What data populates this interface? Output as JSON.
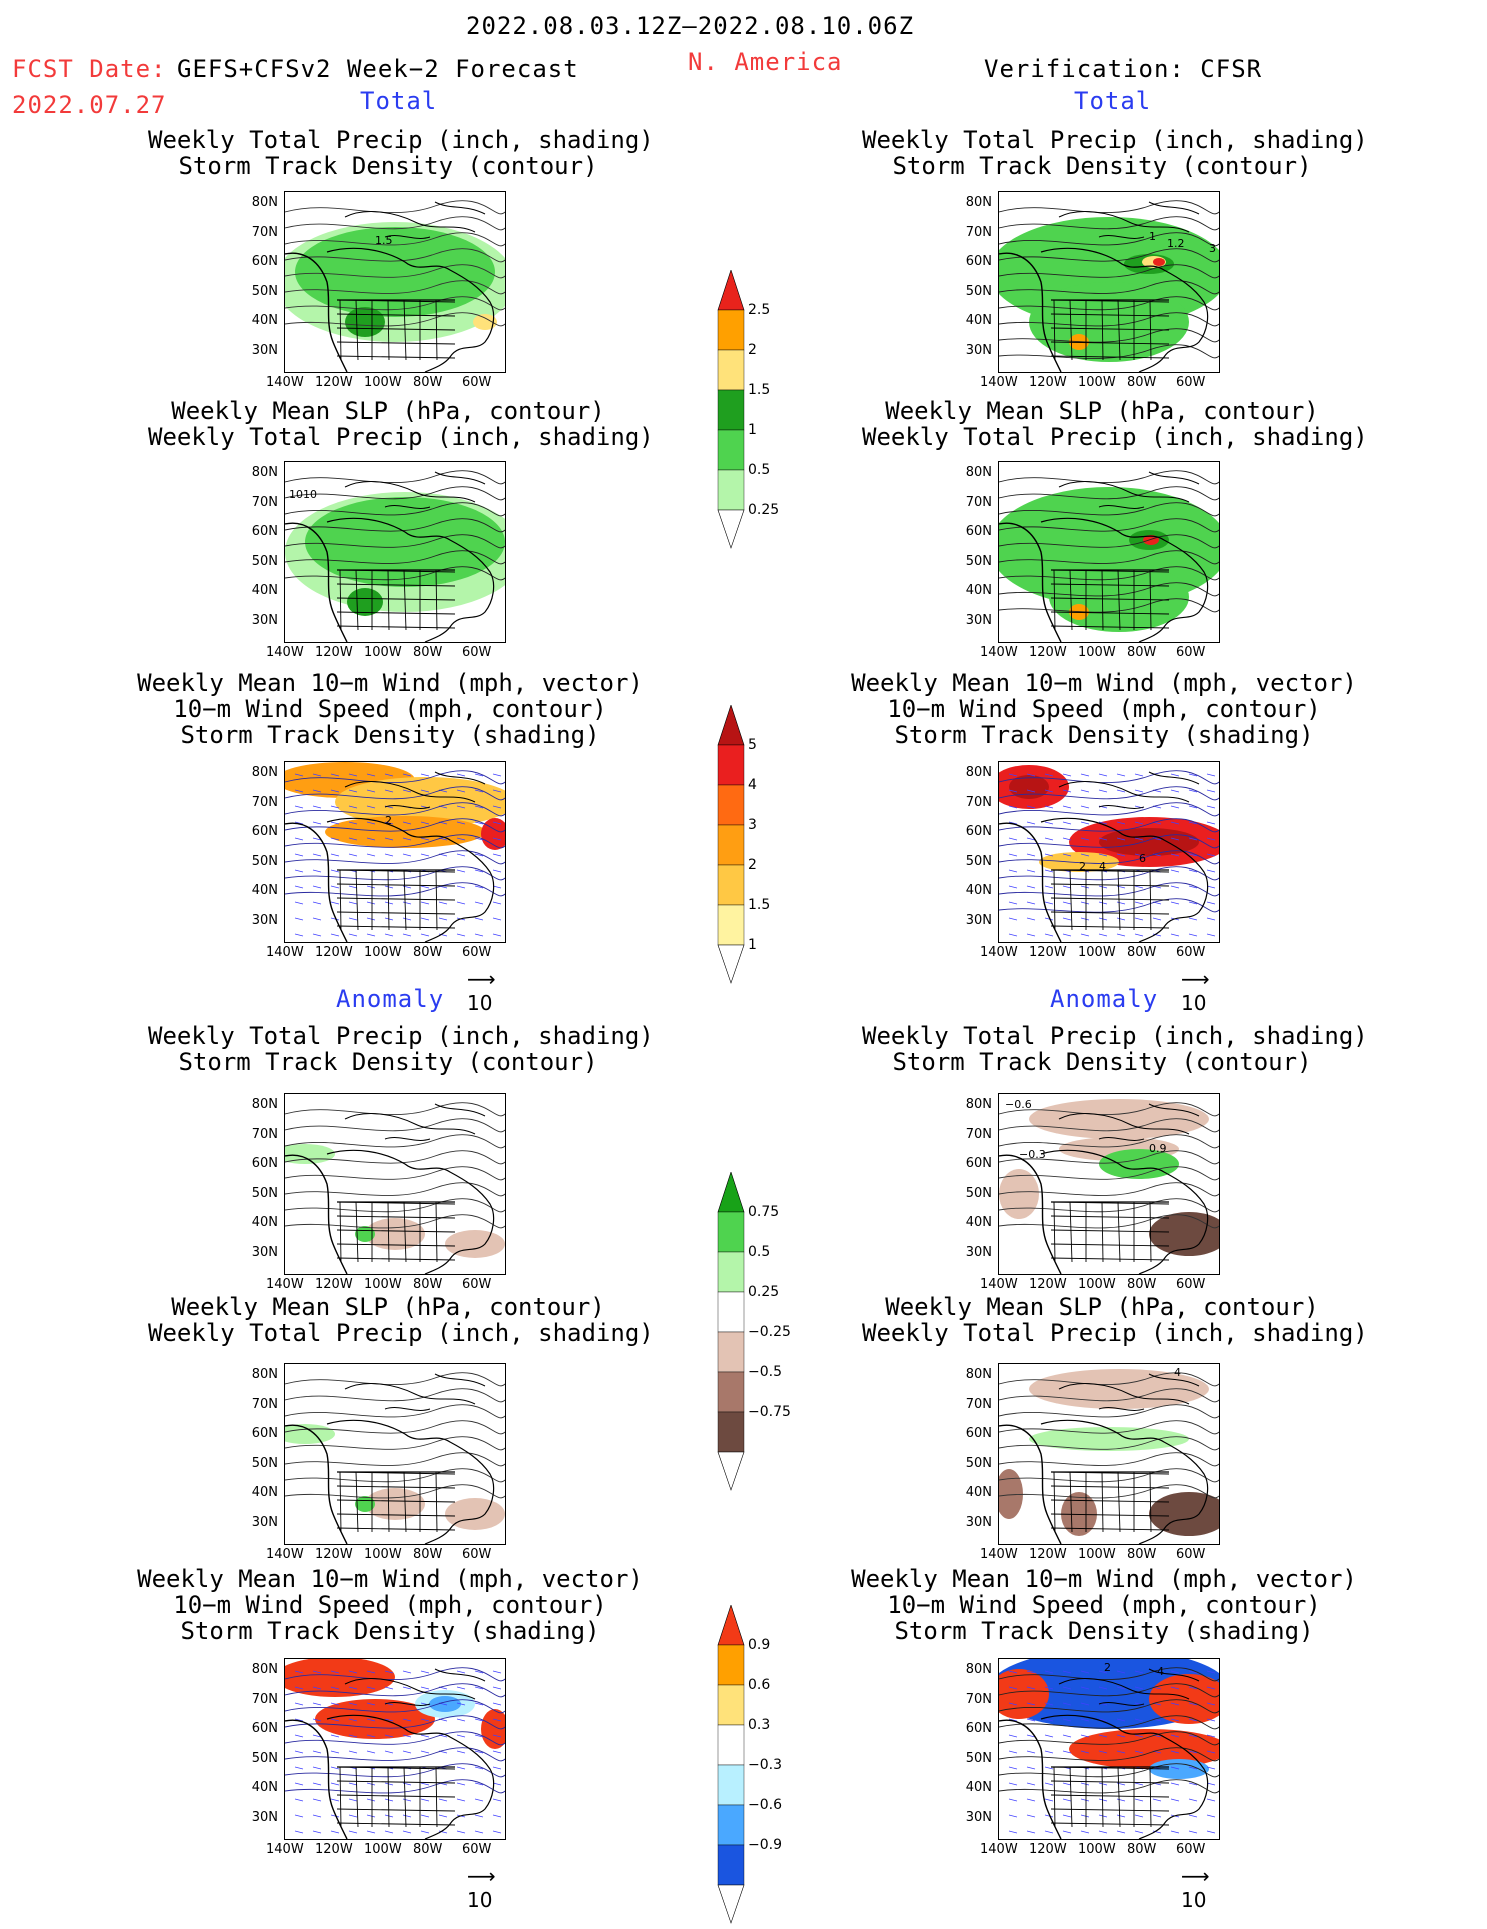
{
  "header": {
    "period": "2022.08.03.12Z–2022.08.10.06Z",
    "fcst_label": "FCST Date:",
    "fcst_date": "2022.07.27",
    "forecast_name": "GEFS+CFSv2 Week−2 Forecast",
    "region": "N. America",
    "verification": "Verification: CFSR"
  },
  "sections": {
    "total": "Total",
    "anomaly": "Anomaly"
  },
  "titles": {
    "precip_track": "Weekly Total Precip (inch, shading)\nStorm Track Density (contour)",
    "slp_precip": "Weekly Mean SLP (hPa, contour)\nWeekly Total Precip (inch, shading)",
    "wind": "Weekly Mean 10−m Wind (mph, vector)\n10−m Wind Speed (mph, contour)\nStorm Track Density (shading)"
  },
  "axes": {
    "lat": [
      "80N",
      "70N",
      "60N",
      "50N",
      "40N",
      "30N"
    ],
    "lon": [
      "140W",
      "120W",
      "100W",
      "80W",
      "60W"
    ]
  },
  "vector_ref": "10",
  "map_labels": {
    "fcst_total_precip": "1.5",
    "fcst_total_slp": "1010",
    "fcst_total_wind": "2",
    "ver_total_precip": [
      "1",
      "1.2",
      "3"
    ],
    "ver_total_wind": [
      "2",
      "4",
      "6"
    ],
    "ver_anom_precip": [
      "−0.6",
      "−0.3",
      "0.9"
    ],
    "ver_anom_slp": "4",
    "ver_anom_wind": [
      "2",
      "4"
    ]
  },
  "colorbars": {
    "total_precip": {
      "labels": [
        "2.5",
        "2",
        "1.5",
        "1",
        "0.5",
        "0.25"
      ],
      "colors": [
        "#e8231c",
        "#ffa000",
        "#ffe27a",
        "#1f9f1f",
        "#4fd34f",
        "#b4f5aa"
      ]
    },
    "track_density": {
      "labels": [
        "5",
        "4",
        "3",
        "2",
        "1.5",
        "1"
      ],
      "colors": [
        "#b71414",
        "#ea1f1f",
        "#ff6a12",
        "#ff9e12",
        "#ffc844",
        "#fff3a0"
      ]
    },
    "anom_precip": {
      "labels": [
        "0.75",
        "0.5",
        "0.25",
        "−0.25",
        "−0.5",
        "−0.75"
      ],
      "colors": [
        "#18a218",
        "#4fd34f",
        "#b4f5aa",
        "#ffffff",
        "#e3c3b4",
        "#a8786a",
        "#6d4a40"
      ]
    },
    "anom_track": {
      "labels": [
        "0.9",
        "0.6",
        "0.3",
        "−0.3",
        "−0.6",
        "−0.9"
      ],
      "colors": [
        "#f23a17",
        "#ffa000",
        "#ffe27a",
        "#ffffff",
        "#b8f0ff",
        "#4aa8ff",
        "#1a55e0"
      ]
    }
  }
}
